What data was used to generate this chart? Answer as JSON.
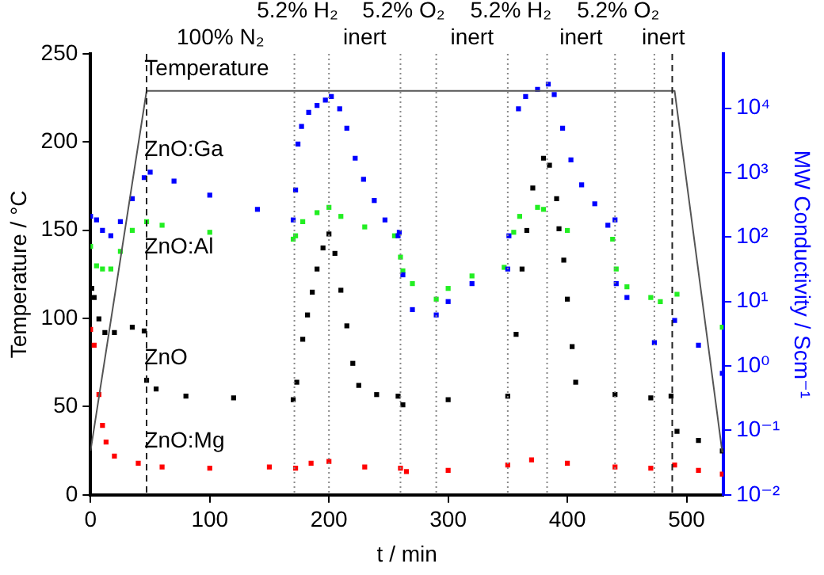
{
  "chart_data": {
    "type": "scatter",
    "xlabel": "t / min",
    "ylabel": "Temperature / °C",
    "y2label": "MW Conductivity / Scm⁻¹",
    "xlim": [
      0,
      531
    ],
    "xticks": [
      0,
      100,
      200,
      300,
      400,
      500
    ],
    "ylim": [
      0,
      250
    ],
    "yticks": [
      0,
      50,
      100,
      150,
      200,
      250
    ],
    "y2lim": [
      0.01,
      70000
    ],
    "y2ticks": [
      {
        "value": 0.01,
        "label": "10⁻²"
      },
      {
        "value": 0.1,
        "label": "10⁻¹"
      },
      {
        "value": 1,
        "label": "10⁰"
      },
      {
        "value": 10,
        "label": "10¹"
      },
      {
        "value": 100,
        "label": "10²"
      },
      {
        "value": 1000,
        "label": "10³"
      },
      {
        "value": 10000,
        "label": "10⁴"
      }
    ],
    "log": "y2",
    "marker": "square",
    "series": [
      {
        "name": "Temperature",
        "type": "line",
        "marker": "none",
        "axis": "y",
        "color": "#555555",
        "x": [
          0,
          47,
          490,
          530
        ],
        "values": [
          25,
          229,
          229,
          24
        ]
      },
      {
        "name": "ZnO:Ga",
        "axis": "y2",
        "color": "#0000ff",
        "x": [
          0,
          5,
          10,
          17,
          25,
          35,
          45,
          50,
          70,
          100,
          140,
          170,
          172,
          174,
          177,
          183,
          190,
          197,
          202,
          209,
          215,
          222,
          229,
          238,
          247,
          258,
          259,
          262,
          270,
          290,
          300,
          320,
          350,
          351,
          359,
          365,
          375,
          384,
          389,
          396,
          403,
          412,
          423,
          434,
          440,
          441,
          450,
          473,
          490,
          510,
          530
        ],
        "values": [
          210,
          185,
          127,
          105,
          174,
          395,
          840,
          1020,
          740,
          448,
          270,
          185,
          540,
          2790,
          5230,
          8650,
          11100,
          13400,
          15200,
          9800,
          4900,
          1680,
          790,
          370,
          185,
          105,
          119,
          26,
          7.5,
          6.2,
          10,
          19,
          32,
          105,
          9800,
          15200,
          19600,
          23700,
          16300,
          4900,
          1580,
          650,
          330,
          153,
          185,
          19,
          11.6,
          2.3,
          5.1,
          2.1,
          0.77
        ]
      },
      {
        "name": "ZnO:Al",
        "axis": "y2",
        "color": "#22ee22",
        "x": [
          0,
          5,
          10,
          17,
          25,
          35,
          47,
          60,
          100,
          170,
          172,
          178,
          190,
          200,
          210,
          230,
          255,
          260,
          262,
          270,
          290,
          300,
          320,
          347,
          355,
          360,
          375,
          380,
          400,
          438,
          441,
          450,
          470,
          478,
          492,
          530
        ],
        "values": [
          72,
          36,
          32,
          32,
          60,
          127,
          174,
          153,
          119,
          93,
          105,
          174,
          240,
          290,
          210,
          144,
          105,
          49,
          30,
          19,
          10.9,
          16,
          25,
          34,
          119,
          210,
          290,
          270,
          127,
          93,
          32,
          17,
          11.6,
          10,
          13,
          4.0
        ]
      },
      {
        "name": "ZnO",
        "axis": "y2",
        "color": "#000000",
        "x": [
          1,
          3,
          7,
          12,
          20,
          35,
          45,
          47,
          55,
          80,
          120,
          170,
          173,
          178,
          182,
          186,
          190,
          195,
          200,
          205,
          210,
          215,
          220,
          225,
          240,
          258,
          262,
          300,
          350,
          357,
          362,
          366,
          371,
          380,
          385,
          391,
          393,
          397,
          400,
          404,
          407,
          440,
          470,
          487,
          492,
          510,
          530
        ],
        "values": [
          16,
          11.6,
          5.4,
          3.3,
          3.3,
          4.0,
          3.5,
          0.6,
          0.44,
          0.34,
          0.32,
          0.3,
          0.56,
          2.6,
          6.2,
          14,
          32,
          68,
          112,
          56,
          15,
          4.2,
          1.1,
          0.5,
          0.36,
          0.34,
          0.25,
          0.3,
          0.34,
          3.1,
          32,
          127,
          580,
          1680,
          1310,
          395,
          135,
          44,
          10.9,
          2.0,
          0.56,
          0.36,
          0.32,
          0.34,
          0.097,
          0.07,
          0.048
        ]
      },
      {
        "name": "ZnO:Mg",
        "axis": "y2",
        "color": "#ff0000",
        "x": [
          0,
          3,
          7,
          10,
          13,
          20,
          40,
          60,
          100,
          150,
          172,
          185,
          200,
          230,
          260,
          265,
          300,
          350,
          370,
          400,
          440,
          470,
          490,
          510,
          530
        ],
        "values": [
          3.7,
          2.1,
          0.36,
          0.12,
          0.066,
          0.04,
          0.031,
          0.027,
          0.026,
          0.027,
          0.026,
          0.031,
          0.033,
          0.027,
          0.026,
          0.023,
          0.024,
          0.029,
          0.035,
          0.031,
          0.027,
          0.026,
          0.029,
          0.024,
          0.021
        ]
      }
    ],
    "ref_lines": [
      {
        "axis": "x",
        "value": 47,
        "line_style": "dashed",
        "color": "#222222"
      },
      {
        "axis": "x",
        "value": 171,
        "line_style": "dotted",
        "color": "#888888"
      },
      {
        "axis": "x",
        "value": 200,
        "line_style": "dotted",
        "color": "#888888"
      },
      {
        "axis": "x",
        "value": 260,
        "line_style": "dotted",
        "color": "#888888"
      },
      {
        "axis": "x",
        "value": 290,
        "line_style": "dotted",
        "color": "#888888"
      },
      {
        "axis": "x",
        "value": 350,
        "line_style": "dotted",
        "color": "#888888"
      },
      {
        "axis": "x",
        "value": 383,
        "line_style": "dotted",
        "color": "#888888"
      },
      {
        "axis": "x",
        "value": 440,
        "line_style": "dotted",
        "color": "#888888"
      },
      {
        "axis": "x",
        "value": 473,
        "line_style": "dotted",
        "color": "#888888"
      },
      {
        "axis": "x",
        "value": 488,
        "line_style": "dashed",
        "color": "#222222"
      }
    ],
    "annotations": [
      "100% N₂",
      "5.2% H₂",
      "inert",
      "5.2% O₂",
      "inert",
      "5.2% H₂",
      "inert",
      "5.2% O₂",
      "inert"
    ]
  }
}
